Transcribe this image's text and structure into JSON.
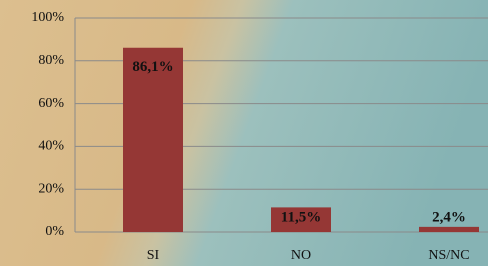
{
  "chart_data": {
    "type": "bar",
    "categories": [
      "SI",
      "NO",
      "NS/NC"
    ],
    "values": [
      86.1,
      11.5,
      2.4
    ],
    "value_labels": [
      "86,1%",
      "11,5%",
      "2,4%"
    ],
    "color": "#953735",
    "ylim": [
      0,
      100
    ],
    "yticks": [
      {
        "value": 0,
        "label": "0%"
      },
      {
        "value": 20,
        "label": "20%"
      },
      {
        "value": 40,
        "label": "40%"
      },
      {
        "value": 60,
        "label": "60%"
      },
      {
        "value": 80,
        "label": "80%"
      },
      {
        "value": 100,
        "label": "100%"
      }
    ],
    "grid": true
  }
}
